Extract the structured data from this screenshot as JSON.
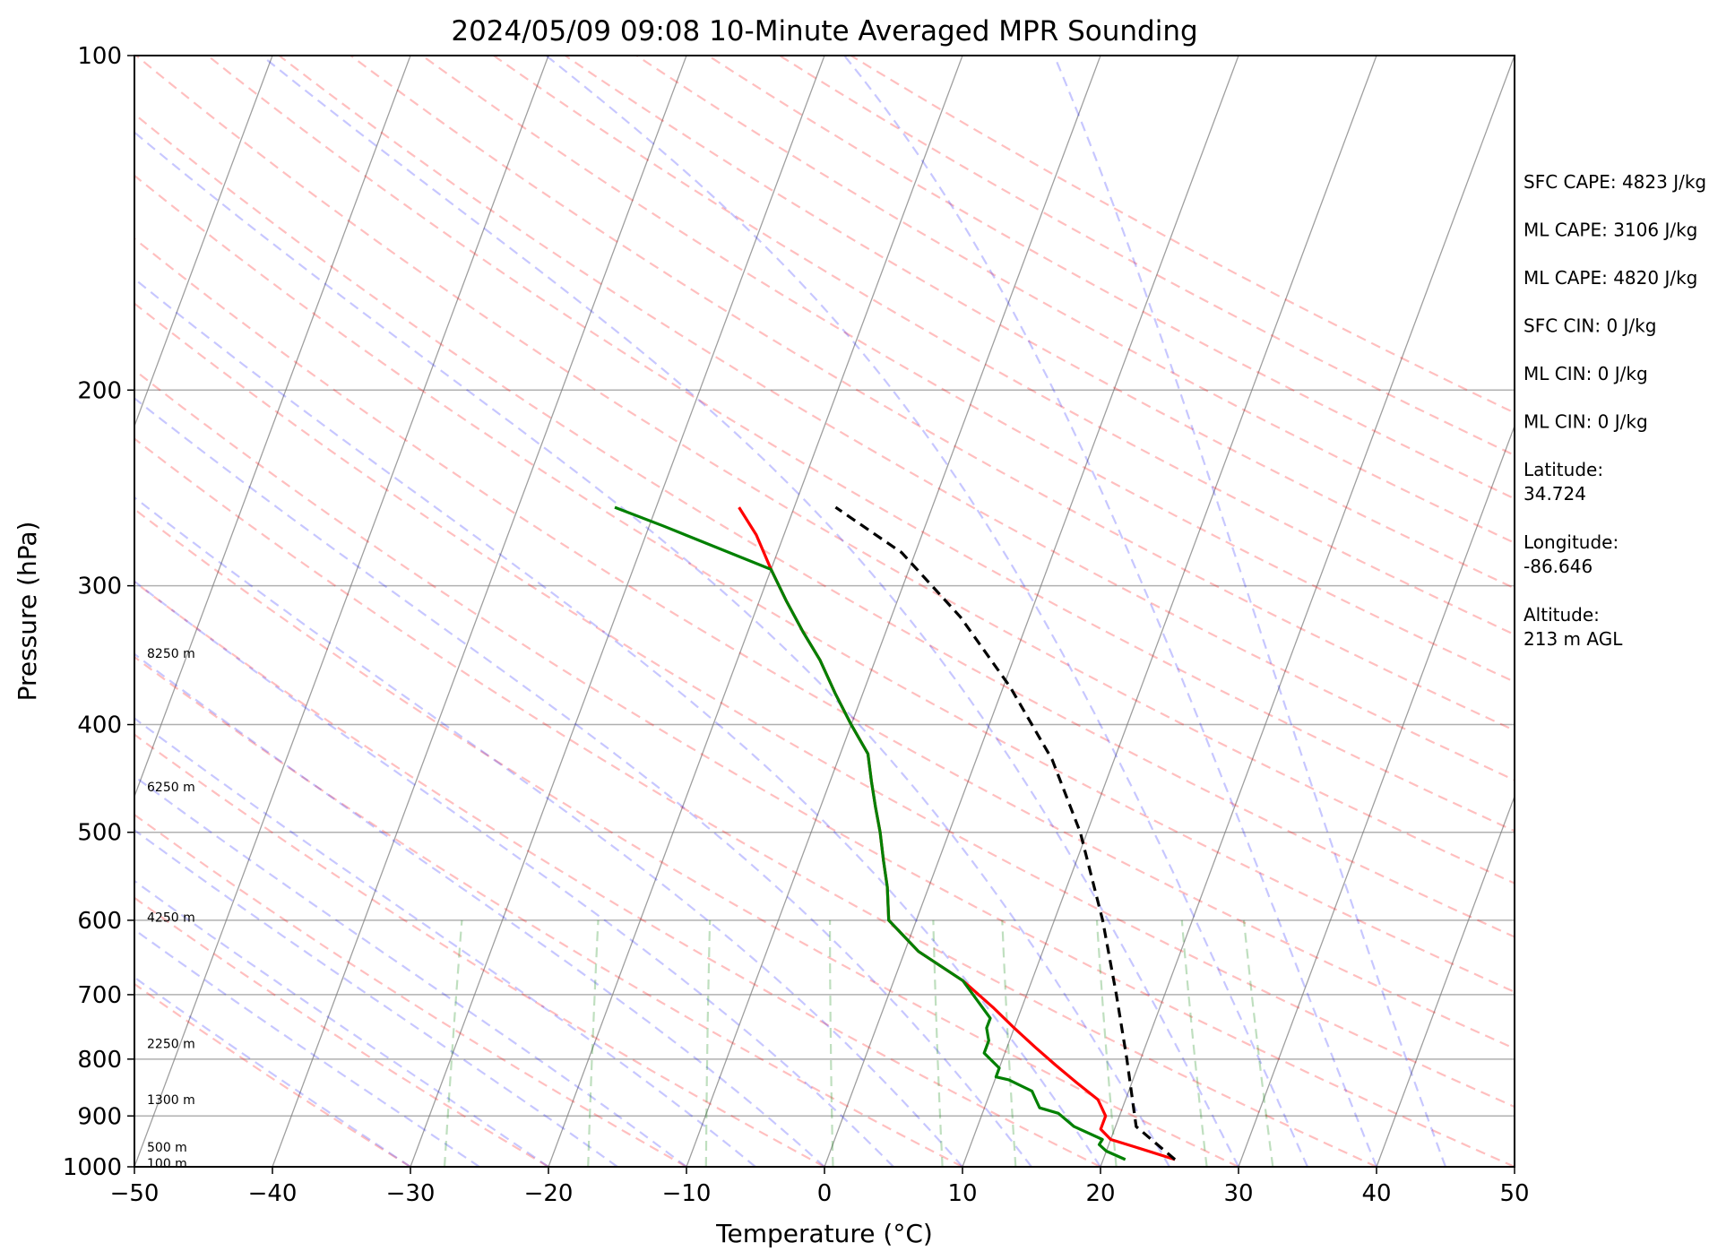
{
  "chart_data": {
    "type": "line",
    "title": "2024/05/09 09:08 10-Minute Averaged MPR Sounding",
    "xlabel": "Temperature (°C)",
    "ylabel": "Pressure (hPa)",
    "xlim": [
      -50,
      50
    ],
    "ylim": [
      1000,
      100
    ],
    "y_scale": "log",
    "x_ticks": [
      -50,
      -40,
      -30,
      -20,
      -10,
      0,
      10,
      20,
      30,
      40,
      50
    ],
    "x_tick_labels": [
      "−50",
      "−40",
      "−30",
      "−20",
      "−10",
      "0",
      "10",
      "20",
      "30",
      "40",
      "50"
    ],
    "y_ticks": [
      100,
      200,
      300,
      400,
      500,
      600,
      700,
      800,
      900,
      1000
    ],
    "y_tick_labels": [
      "100",
      "200",
      "300",
      "400",
      "500",
      "600",
      "700",
      "800",
      "900",
      "1000"
    ],
    "skew": true,
    "background_lines": [
      "isotherms",
      "dry adiabats",
      "moist adiabats",
      "mixing ratio lines"
    ],
    "height_labels": [
      {
        "label": "8250 m",
        "p": 345
      },
      {
        "label": "6250 m",
        "p": 455
      },
      {
        "label": "4250 m",
        "p": 596
      },
      {
        "label": "2250 m",
        "p": 775
      },
      {
        "label": "1300 m",
        "p": 870
      },
      {
        "label": "500 m",
        "p": 960
      },
      {
        "label": "100 m",
        "p": 993
      }
    ],
    "series": [
      {
        "role": "temperature",
        "color": "#ff0000",
        "points": [
          {
            "t": 25.2,
            "p": 985
          },
          {
            "t": 22,
            "p": 960
          },
          {
            "t": 20,
            "p": 945
          },
          {
            "t": 19,
            "p": 925
          },
          {
            "t": 19,
            "p": 900
          },
          {
            "t": 18,
            "p": 870
          },
          {
            "t": 16,
            "p": 840
          },
          {
            "t": 14,
            "p": 810
          },
          {
            "t": 12,
            "p": 780
          },
          {
            "t": 10,
            "p": 750
          },
          {
            "t": 8,
            "p": 720
          },
          {
            "t": 5,
            "p": 680
          },
          {
            "t": 1,
            "p": 640
          },
          {
            "t": -2,
            "p": 600
          },
          {
            "t": -3,
            "p": 560
          },
          {
            "t": -4,
            "p": 530
          },
          {
            "t": -5,
            "p": 500
          },
          {
            "t": -6,
            "p": 475
          },
          {
            "t": -7,
            "p": 450
          },
          {
            "t": -8,
            "p": 425
          },
          {
            "t": -10,
            "p": 400
          },
          {
            "t": -12,
            "p": 375
          },
          {
            "t": -14,
            "p": 350
          },
          {
            "t": -16,
            "p": 330
          },
          {
            "t": -18,
            "p": 310
          },
          {
            "t": -20,
            "p": 290
          },
          {
            "t": -22,
            "p": 270
          },
          {
            "t": -24,
            "p": 255
          }
        ]
      },
      {
        "role": "dewpoint",
        "color": "#008000",
        "points": [
          {
            "t": 21.6,
            "p": 985
          },
          {
            "t": 20,
            "p": 968
          },
          {
            "t": 19.3,
            "p": 955
          },
          {
            "t": 19.4,
            "p": 945
          },
          {
            "t": 17,
            "p": 920
          },
          {
            "t": 15.5,
            "p": 895
          },
          {
            "t": 14,
            "p": 885
          },
          {
            "t": 13.5,
            "p": 870
          },
          {
            "t": 13,
            "p": 855
          },
          {
            "t": 11,
            "p": 835
          },
          {
            "t": 10,
            "p": 830
          },
          {
            "t": 10,
            "p": 815
          },
          {
            "t": 8.5,
            "p": 790
          },
          {
            "t": 8.5,
            "p": 770
          },
          {
            "t": 8,
            "p": 750
          },
          {
            "t": 8,
            "p": 735
          },
          {
            "t": 5,
            "p": 680
          },
          {
            "t": 1,
            "p": 640
          },
          {
            "t": -2,
            "p": 600
          },
          {
            "t": -3,
            "p": 560
          },
          {
            "t": -4,
            "p": 530
          },
          {
            "t": -5,
            "p": 500
          },
          {
            "t": -6,
            "p": 475
          },
          {
            "t": -7,
            "p": 450
          },
          {
            "t": -8,
            "p": 425
          },
          {
            "t": -10,
            "p": 400
          },
          {
            "t": -12,
            "p": 375
          },
          {
            "t": -14,
            "p": 350
          },
          {
            "t": -16,
            "p": 330
          },
          {
            "t": -18,
            "p": 310
          },
          {
            "t": -20,
            "p": 290
          },
          {
            "t": -23.5,
            "p": 280
          },
          {
            "t": -29,
            "p": 265
          },
          {
            "t": -33,
            "p": 255
          }
        ]
      },
      {
        "role": "parcel",
        "color": "#000000",
        "points": [
          {
            "t": 25.2,
            "p": 985
          },
          {
            "t": 21.5,
            "p": 920
          },
          {
            "t": 19,
            "p": 800
          },
          {
            "t": 16.5,
            "p": 700
          },
          {
            "t": 13.5,
            "p": 600
          },
          {
            "t": 9.5,
            "p": 500
          },
          {
            "t": 5.5,
            "p": 430
          },
          {
            "t": 0.5,
            "p": 370
          },
          {
            "t": -5,
            "p": 320
          },
          {
            "t": -11,
            "p": 280
          },
          {
            "t": -17,
            "p": 255
          }
        ]
      }
    ],
    "annotations": [
      "SFC CAPE: 4823 J/kg",
      "ML CAPE: 3106 J/kg",
      "ML CAPE: 4820 J/kg",
      "SFC CIN: 0 J/kg",
      "ML CIN: 0 J/kg",
      "ML CIN: 0 J/kg",
      "Latitude:\n34.724",
      "Longitude:\n-86.646",
      "Altitude:\n213 m AGL"
    ],
    "colors": {
      "isotherm": "#7f7f7f",
      "dry_adiabat": "#ff0000",
      "moist_adiabat": "#0000ff",
      "mixing_ratio": "#008000",
      "grid": "#b0b0b0"
    }
  }
}
